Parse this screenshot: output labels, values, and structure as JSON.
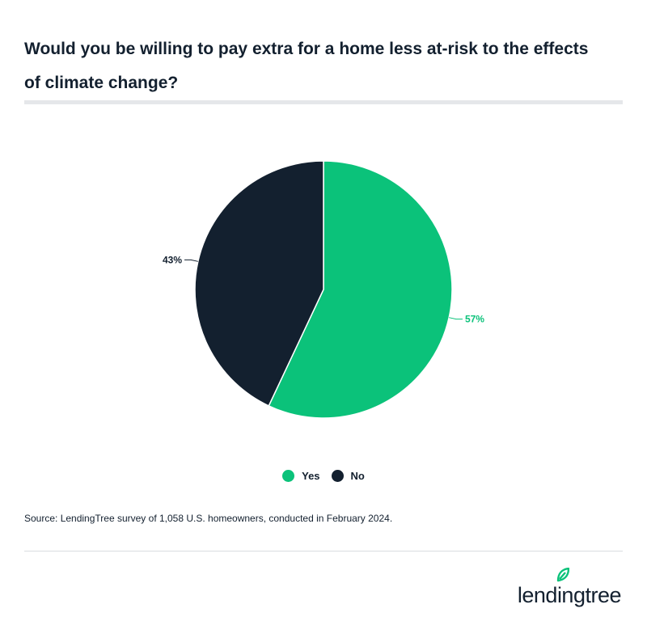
{
  "header": {
    "title": "Would you be willing to pay extra for a home less at-risk to the effects of climate change?"
  },
  "chart_data": {
    "type": "pie",
    "title": "Would you be willing to pay extra for a home less at-risk to the effects of climate change?",
    "categories": [
      "Yes",
      "No"
    ],
    "values": [
      57,
      43
    ],
    "labels": [
      "57%",
      "43%"
    ],
    "colors": [
      "#0bc27a",
      "#13202f"
    ],
    "start_angle_deg": 0,
    "direction": "clockwise",
    "legend_position": "bottom"
  },
  "legend": {
    "items": [
      {
        "label": "Yes",
        "color": "#0bc27a"
      },
      {
        "label": "No",
        "color": "#13202f"
      }
    ]
  },
  "footer": {
    "source": "Source: LendingTree survey of 1,058 U.S. homeowners, conducted in February 2024.",
    "brand": "lendingtree",
    "brand_leaf_color": "#0bc27a"
  }
}
